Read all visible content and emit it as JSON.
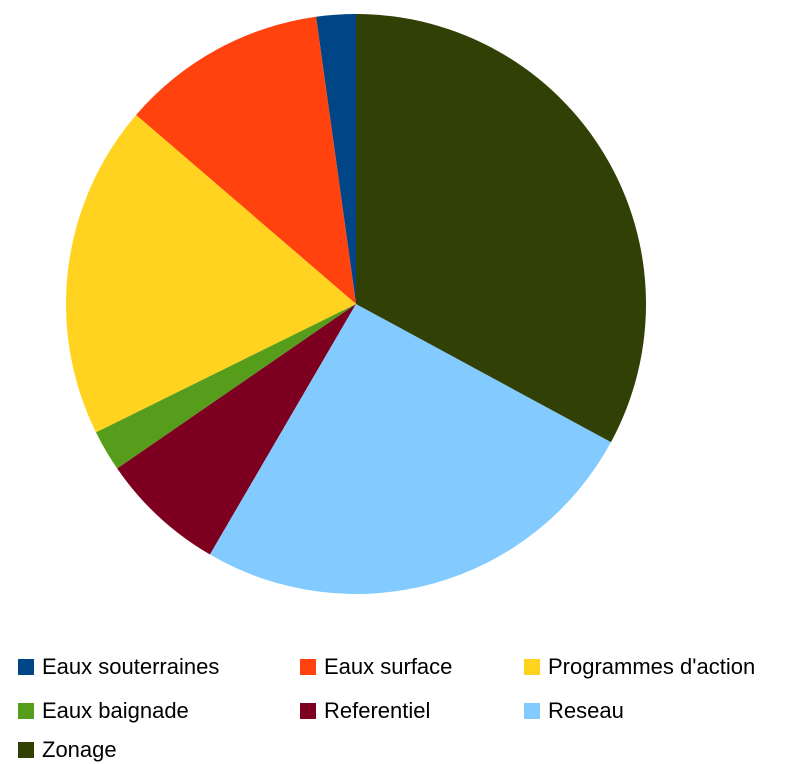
{
  "chart_data": {
    "type": "pie",
    "title": "",
    "start": "top",
    "direction": "counterclockwise",
    "series": [
      {
        "name": "Eaux souterraines",
        "value": 2.2,
        "color": "#004586"
      },
      {
        "name": "Eaux surface",
        "value": 11.5,
        "color": "#ff420e"
      },
      {
        "name": "Programmes d'action",
        "value": 18.6,
        "color": "#ffd320"
      },
      {
        "name": "Eaux baignade",
        "value": 2.3,
        "color": "#579d1c"
      },
      {
        "name": "Referentiel",
        "value": 7.0,
        "color": "#7e0021"
      },
      {
        "name": "Reseau",
        "value": 25.5,
        "color": "#83caff"
      },
      {
        "name": "Zonage",
        "value": 32.9,
        "color": "#314004"
      }
    ],
    "legend": {
      "placement": "bottom",
      "columns": 3
    }
  }
}
